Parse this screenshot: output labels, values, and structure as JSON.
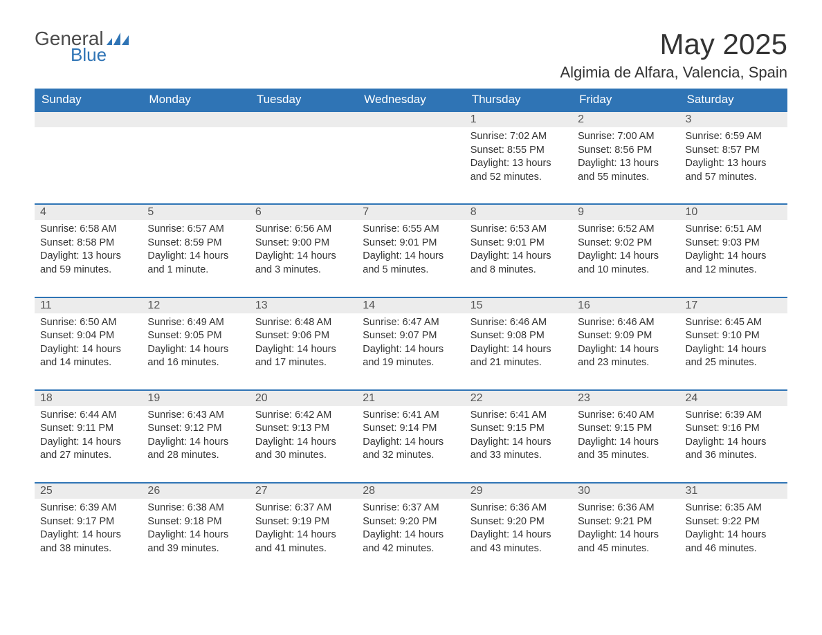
{
  "logo": {
    "text_general": "General",
    "text_blue": "Blue"
  },
  "title": "May 2025",
  "location": "Algimia de Alfara, Valencia, Spain",
  "colors": {
    "header_bg": "#2f74b5",
    "header_text": "#ffffff",
    "daynum_bg": "#ececec",
    "row_border": "#2f74b5",
    "body_text": "#333333",
    "logo_general": "#4a4a4a",
    "logo_blue": "#2f74b5",
    "page_bg": "#ffffff"
  },
  "typography": {
    "title_fontsize": 42,
    "location_fontsize": 22,
    "header_fontsize": 17,
    "daynum_fontsize": 16,
    "body_fontsize": 14.5
  },
  "weekdays": [
    "Sunday",
    "Monday",
    "Tuesday",
    "Wednesday",
    "Thursday",
    "Friday",
    "Saturday"
  ],
  "weeks": [
    [
      {
        "empty": true
      },
      {
        "empty": true
      },
      {
        "empty": true
      },
      {
        "empty": true
      },
      {
        "day": "1",
        "sunrise": "Sunrise: 7:02 AM",
        "sunset": "Sunset: 8:55 PM",
        "daylight": "Daylight: 13 hours and 52 minutes."
      },
      {
        "day": "2",
        "sunrise": "Sunrise: 7:00 AM",
        "sunset": "Sunset: 8:56 PM",
        "daylight": "Daylight: 13 hours and 55 minutes."
      },
      {
        "day": "3",
        "sunrise": "Sunrise: 6:59 AM",
        "sunset": "Sunset: 8:57 PM",
        "daylight": "Daylight: 13 hours and 57 minutes."
      }
    ],
    [
      {
        "day": "4",
        "sunrise": "Sunrise: 6:58 AM",
        "sunset": "Sunset: 8:58 PM",
        "daylight": "Daylight: 13 hours and 59 minutes."
      },
      {
        "day": "5",
        "sunrise": "Sunrise: 6:57 AM",
        "sunset": "Sunset: 8:59 PM",
        "daylight": "Daylight: 14 hours and 1 minute."
      },
      {
        "day": "6",
        "sunrise": "Sunrise: 6:56 AM",
        "sunset": "Sunset: 9:00 PM",
        "daylight": "Daylight: 14 hours and 3 minutes."
      },
      {
        "day": "7",
        "sunrise": "Sunrise: 6:55 AM",
        "sunset": "Sunset: 9:01 PM",
        "daylight": "Daylight: 14 hours and 5 minutes."
      },
      {
        "day": "8",
        "sunrise": "Sunrise: 6:53 AM",
        "sunset": "Sunset: 9:01 PM",
        "daylight": "Daylight: 14 hours and 8 minutes."
      },
      {
        "day": "9",
        "sunrise": "Sunrise: 6:52 AM",
        "sunset": "Sunset: 9:02 PM",
        "daylight": "Daylight: 14 hours and 10 minutes."
      },
      {
        "day": "10",
        "sunrise": "Sunrise: 6:51 AM",
        "sunset": "Sunset: 9:03 PM",
        "daylight": "Daylight: 14 hours and 12 minutes."
      }
    ],
    [
      {
        "day": "11",
        "sunrise": "Sunrise: 6:50 AM",
        "sunset": "Sunset: 9:04 PM",
        "daylight": "Daylight: 14 hours and 14 minutes."
      },
      {
        "day": "12",
        "sunrise": "Sunrise: 6:49 AM",
        "sunset": "Sunset: 9:05 PM",
        "daylight": "Daylight: 14 hours and 16 minutes."
      },
      {
        "day": "13",
        "sunrise": "Sunrise: 6:48 AM",
        "sunset": "Sunset: 9:06 PM",
        "daylight": "Daylight: 14 hours and 17 minutes."
      },
      {
        "day": "14",
        "sunrise": "Sunrise: 6:47 AM",
        "sunset": "Sunset: 9:07 PM",
        "daylight": "Daylight: 14 hours and 19 minutes."
      },
      {
        "day": "15",
        "sunrise": "Sunrise: 6:46 AM",
        "sunset": "Sunset: 9:08 PM",
        "daylight": "Daylight: 14 hours and 21 minutes."
      },
      {
        "day": "16",
        "sunrise": "Sunrise: 6:46 AM",
        "sunset": "Sunset: 9:09 PM",
        "daylight": "Daylight: 14 hours and 23 minutes."
      },
      {
        "day": "17",
        "sunrise": "Sunrise: 6:45 AM",
        "sunset": "Sunset: 9:10 PM",
        "daylight": "Daylight: 14 hours and 25 minutes."
      }
    ],
    [
      {
        "day": "18",
        "sunrise": "Sunrise: 6:44 AM",
        "sunset": "Sunset: 9:11 PM",
        "daylight": "Daylight: 14 hours and 27 minutes."
      },
      {
        "day": "19",
        "sunrise": "Sunrise: 6:43 AM",
        "sunset": "Sunset: 9:12 PM",
        "daylight": "Daylight: 14 hours and 28 minutes."
      },
      {
        "day": "20",
        "sunrise": "Sunrise: 6:42 AM",
        "sunset": "Sunset: 9:13 PM",
        "daylight": "Daylight: 14 hours and 30 minutes."
      },
      {
        "day": "21",
        "sunrise": "Sunrise: 6:41 AM",
        "sunset": "Sunset: 9:14 PM",
        "daylight": "Daylight: 14 hours and 32 minutes."
      },
      {
        "day": "22",
        "sunrise": "Sunrise: 6:41 AM",
        "sunset": "Sunset: 9:15 PM",
        "daylight": "Daylight: 14 hours and 33 minutes."
      },
      {
        "day": "23",
        "sunrise": "Sunrise: 6:40 AM",
        "sunset": "Sunset: 9:15 PM",
        "daylight": "Daylight: 14 hours and 35 minutes."
      },
      {
        "day": "24",
        "sunrise": "Sunrise: 6:39 AM",
        "sunset": "Sunset: 9:16 PM",
        "daylight": "Daylight: 14 hours and 36 minutes."
      }
    ],
    [
      {
        "day": "25",
        "sunrise": "Sunrise: 6:39 AM",
        "sunset": "Sunset: 9:17 PM",
        "daylight": "Daylight: 14 hours and 38 minutes."
      },
      {
        "day": "26",
        "sunrise": "Sunrise: 6:38 AM",
        "sunset": "Sunset: 9:18 PM",
        "daylight": "Daylight: 14 hours and 39 minutes."
      },
      {
        "day": "27",
        "sunrise": "Sunrise: 6:37 AM",
        "sunset": "Sunset: 9:19 PM",
        "daylight": "Daylight: 14 hours and 41 minutes."
      },
      {
        "day": "28",
        "sunrise": "Sunrise: 6:37 AM",
        "sunset": "Sunset: 9:20 PM",
        "daylight": "Daylight: 14 hours and 42 minutes."
      },
      {
        "day": "29",
        "sunrise": "Sunrise: 6:36 AM",
        "sunset": "Sunset: 9:20 PM",
        "daylight": "Daylight: 14 hours and 43 minutes."
      },
      {
        "day": "30",
        "sunrise": "Sunrise: 6:36 AM",
        "sunset": "Sunset: 9:21 PM",
        "daylight": "Daylight: 14 hours and 45 minutes."
      },
      {
        "day": "31",
        "sunrise": "Sunrise: 6:35 AM",
        "sunset": "Sunset: 9:22 PM",
        "daylight": "Daylight: 14 hours and 46 minutes."
      }
    ]
  ]
}
